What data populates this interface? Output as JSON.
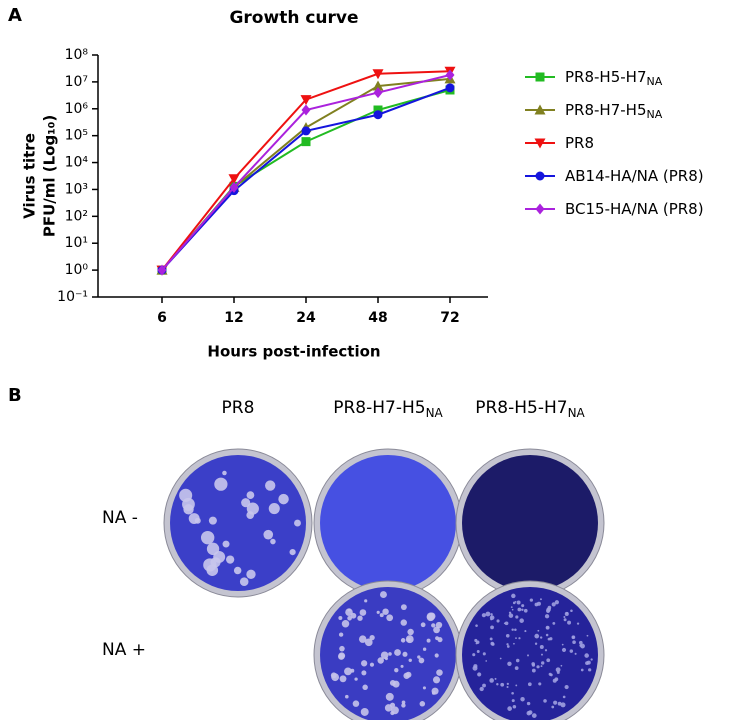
{
  "panel_a": {
    "label": "A"
  },
  "chart_data": {
    "type": "line",
    "title": "Growth curve",
    "x_label": "Hours post-infection",
    "y_label": [
      "Virus titre",
      "PFU/ml (Log₁₀)"
    ],
    "categories": [
      "6",
      "12",
      "24",
      "48",
      "72"
    ],
    "log_scale": true,
    "ylim": [
      0.1,
      100000000
    ],
    "yticks": [
      {
        "value": 0.1,
        "label": "10⁻¹"
      },
      {
        "value": 1,
        "label": "10⁰"
      },
      {
        "value": 10,
        "label": "10¹"
      },
      {
        "value": 100,
        "label": "10²"
      },
      {
        "value": 1000,
        "label": "10³"
      },
      {
        "value": 10000,
        "label": "10⁴"
      },
      {
        "value": 100000,
        "label": "10⁵"
      },
      {
        "value": 1000000,
        "label": "10⁶"
      },
      {
        "value": 10000000,
        "label": "10⁷"
      },
      {
        "value": 100000000,
        "label": "10⁸"
      }
    ],
    "legend": "right",
    "series": [
      {
        "name": "PR8-H5-H7",
        "name_sub": "NA",
        "color": "#22bb22",
        "marker": "square",
        "values": [
          1,
          1300,
          60000,
          900000,
          5000000
        ]
      },
      {
        "name": "PR8-H7-H5",
        "name_sub": "NA",
        "color": "#808020",
        "marker": "triangle-up",
        "values": [
          1,
          1200,
          200000,
          7000000,
          13000000
        ]
      },
      {
        "name": "PR8",
        "color": "#ee1111",
        "marker": "triangle-down",
        "values": [
          1,
          2500,
          2200000,
          20000000,
          25000000
        ]
      },
      {
        "name": "AB14-HA/NA (PR8)",
        "color": "#1515dd",
        "marker": "circle",
        "values": [
          1,
          900,
          150000,
          600000,
          6000000
        ]
      },
      {
        "name": "BC15-HA/NA (PR8)",
        "color": "#aa22dd",
        "marker": "diamond",
        "values": [
          1,
          1200,
          900000,
          4000000,
          18000000
        ]
      }
    ]
  },
  "panel_b": {
    "label": "B",
    "columns": [
      {
        "name": "PR8"
      },
      {
        "name": "PR8-H7-H5",
        "sub": "NA"
      },
      {
        "name": "PR8-H5-H7",
        "sub": "NA"
      }
    ],
    "rows": [
      "NA -",
      "NA +"
    ]
  }
}
